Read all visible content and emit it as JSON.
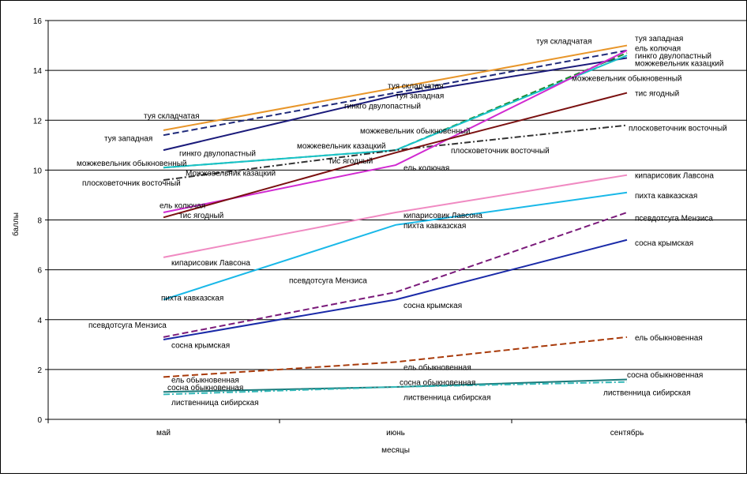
{
  "chart_data": {
    "type": "line",
    "title": "",
    "xlabel": "месяцы",
    "ylabel": "баллы",
    "ylim": [
      0,
      16
    ],
    "yticks": [
      0,
      2,
      4,
      6,
      8,
      10,
      12,
      14,
      16
    ],
    "categories": [
      "май",
      "июнь",
      "сентябрь"
    ],
    "grid": true,
    "series": [
      {
        "name": "туя складчатая",
        "values": [
          11.6,
          13.3,
          15.0
        ],
        "color": "#e8962a",
        "dash": ""
      },
      {
        "name": "туя западная",
        "values": [
          11.4,
          13.1,
          14.8
        ],
        "color": "#1f2a7a",
        "dash": "8,4"
      },
      {
        "name": "гинкго двулопастный",
        "values": [
          10.8,
          13.0,
          14.5
        ],
        "color": "#1a1a7a",
        "dash": ""
      },
      {
        "name": "можжевельник обыкновенный",
        "values": [
          10.1,
          10.8,
          14.7
        ],
        "color": "#1b8a2e",
        "dash": "8,4"
      },
      {
        "name": "можжевельник казацкий",
        "values": [
          10.1,
          10.8,
          14.6
        ],
        "color": "#19c2c8",
        "dash": ""
      },
      {
        "name": "плосковеточник восточный",
        "values": [
          9.6,
          10.8,
          11.8
        ],
        "color": "#333333",
        "dash": "8,3,2,3"
      },
      {
        "name": "ель колючая",
        "values": [
          8.3,
          10.2,
          14.8
        ],
        "color": "#d12ad1",
        "dash": ""
      },
      {
        "name": "тис ягодный",
        "values": [
          8.1,
          10.7,
          13.1
        ],
        "color": "#7a1010",
        "dash": ""
      },
      {
        "name": "кипарисовик Лавсона",
        "values": [
          6.5,
          8.3,
          9.8
        ],
        "color": "#f08ac2",
        "dash": ""
      },
      {
        "name": "пихта кавказская",
        "values": [
          4.8,
          7.8,
          9.1
        ],
        "color": "#19b8e8",
        "dash": ""
      },
      {
        "name": "псевдотсуга Мензиса",
        "values": [
          3.3,
          5.1,
          8.3
        ],
        "color": "#7a1a7a",
        "dash": "8,4"
      },
      {
        "name": "сосна крымская",
        "values": [
          3.2,
          4.8,
          7.2
        ],
        "color": "#1a2aa8",
        "dash": ""
      },
      {
        "name": "ель обыкновенная",
        "values": [
          1.7,
          2.3,
          3.3
        ],
        "color": "#a83a0a",
        "dash": "8,4"
      },
      {
        "name": "сосна обыкновенная",
        "values": [
          1.1,
          1.3,
          1.6
        ],
        "color": "#1a7a7a",
        "dash": ""
      },
      {
        "name": "лиственница сибирская",
        "values": [
          1.0,
          1.3,
          1.5
        ],
        "color": "#33b8b8",
        "dash": "8,3,2,3"
      }
    ],
    "annotations": [
      {
        "text": "туя складчатая",
        "x": "май",
        "y": 12.2
      },
      {
        "text": "туя западная",
        "x": "май",
        "y": 11.3
      },
      {
        "text": "гинкго двулопастный",
        "x": "май",
        "y": 10.7
      },
      {
        "text": "можжевельник обыкновенный",
        "x": "май",
        "y": 10.3
      },
      {
        "text": "Можжевельник казацкий",
        "x": "май",
        "y": 9.9
      },
      {
        "text": "плосковеточник восточный",
        "x": "май",
        "y": 9.5
      },
      {
        "text": "ель колючая",
        "x": "май",
        "y": 8.6
      },
      {
        "text": "тис ягодный",
        "x": "май",
        "y": 8.2
      },
      {
        "text": "кипарисовик Лавсона",
        "x": "май",
        "y": 6.3
      },
      {
        "text": "пихта кавказская",
        "x": "май",
        "y": 4.9
      },
      {
        "text": "псевдотсуга Мензиса",
        "x": "май",
        "y": 3.8
      },
      {
        "text": "сосна крымская",
        "x": "май",
        "y": 3.0
      },
      {
        "text": "ель обыкновенная",
        "x": "май",
        "y": 1.6
      },
      {
        "text": "сосна обыкновенная",
        "x": "май",
        "y": 1.3
      },
      {
        "text": "лиственница сибирская",
        "x": "май",
        "y": 0.7
      },
      {
        "text": "туя складчатая",
        "x": "июнь",
        "y": 13.4
      },
      {
        "text": "туя западная",
        "x": "июнь",
        "y": 13.0
      },
      {
        "text": "гинкго двулопастный",
        "x": "июнь",
        "y": 12.6
      },
      {
        "text": "можжевельник обыкновенный",
        "x": "июнь",
        "y": 11.6
      },
      {
        "text": "можжевельник казацкий",
        "x": "июнь",
        "y": 11.0
      },
      {
        "text": "тис ягодный",
        "x": "июнь",
        "y": 10.4
      },
      {
        "text": "плосковеточник восточный",
        "x": "июнь",
        "y": 10.8
      },
      {
        "text": "ель колючая",
        "x": "июнь",
        "y": 10.1
      },
      {
        "text": "кипарисовик Лавсона",
        "x": "июнь",
        "y": 8.2
      },
      {
        "text": "пихта кавказская",
        "x": "июнь",
        "y": 7.8
      },
      {
        "text": "псевдотсуга Мензиса",
        "x": "июнь",
        "y": 5.6
      },
      {
        "text": "сосна крымская",
        "x": "июнь",
        "y": 4.6
      },
      {
        "text": "ель обыкновенная",
        "x": "июнь",
        "y": 2.1
      },
      {
        "text": "сосна обыкновенная",
        "x": "июнь",
        "y": 1.5
      },
      {
        "text": "лиственница сибирская",
        "x": "июнь",
        "y": 0.9
      },
      {
        "text": "туя складчатая",
        "x": "сентябрь",
        "y": 15.2
      },
      {
        "text": "туя западная",
        "x": "сентябрь",
        "y": 15.3
      },
      {
        "text": "ель колючая",
        "x": "сентябрь",
        "y": 14.9
      },
      {
        "text": "гинкго двулопастный",
        "x": "сентябрь",
        "y": 14.6
      },
      {
        "text": "можжевельник казацкий",
        "x": "сентябрь",
        "y": 14.3
      },
      {
        "text": "можжевельник обыкновенный",
        "x": "сентябрь",
        "y": 13.7
      },
      {
        "text": "тис ягодный",
        "x": "сентябрь",
        "y": 13.1
      },
      {
        "text": "плосковеточник восточный",
        "x": "сентябрь",
        "y": 11.7
      },
      {
        "text": "кипарисовик Лавсона",
        "x": "сентябрь",
        "y": 9.8
      },
      {
        "text": "пихта кавказская",
        "x": "сентябрь",
        "y": 9.0
      },
      {
        "text": "псевдотсуга Мензиса",
        "x": "сентябрь",
        "y": 8.1
      },
      {
        "text": "сосна крымская",
        "x": "сентябрь",
        "y": 7.1
      },
      {
        "text": "ель обыкновенная",
        "x": "сентябрь",
        "y": 3.3
      },
      {
        "text": "сосна обыкновенная",
        "x": "сентябрь",
        "y": 1.8
      },
      {
        "text": "лиственница сибирская",
        "x": "сентябрь",
        "y": 1.1
      }
    ]
  }
}
